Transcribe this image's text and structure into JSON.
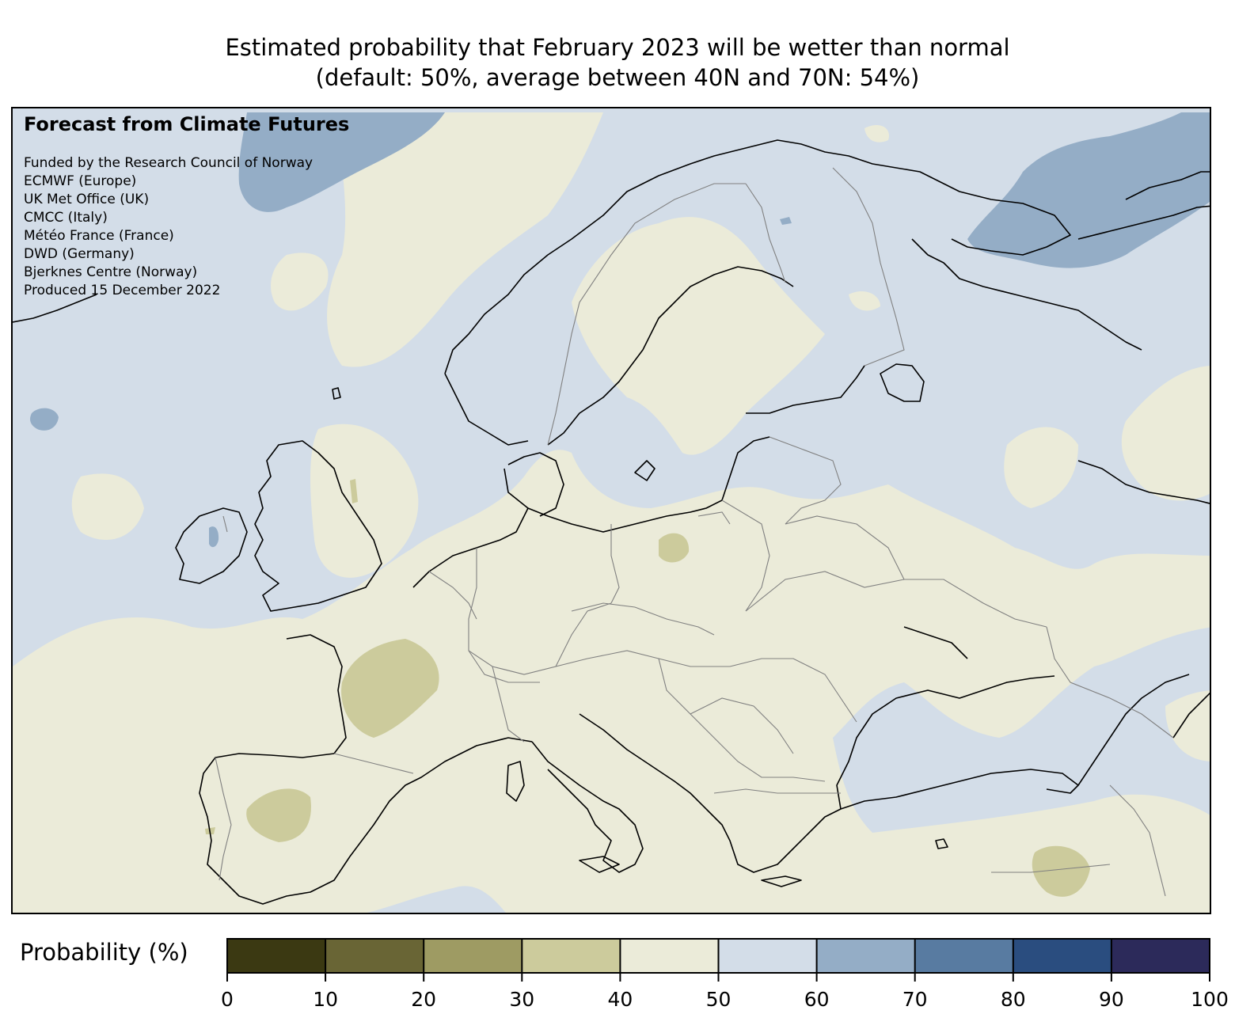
{
  "title_line1": "Estimated probability that February 2023 will be wetter than normal",
  "title_line2": "(default: 50%, average between 40N and 70N: 54%)",
  "overlay": {
    "heading": "Forecast from Climate Futures",
    "credits": [
      "Funded by the Research Council of Norway",
      "ECMWF (Europe)",
      "UK Met Office (UK)",
      "CMCC (Italy)",
      "Météo France (France)",
      "DWD (Germany)",
      "Bjerknes Centre (Norway)",
      "Produced 15 December 2022"
    ]
  },
  "colorbar": {
    "label": "Probability (%)",
    "min": 0,
    "max": 100,
    "bins": [
      {
        "from": 0,
        "to": 10,
        "color": "#3b3912"
      },
      {
        "from": 10,
        "to": 20,
        "color": "#696535"
      },
      {
        "from": 20,
        "to": 30,
        "color": "#9e9b63"
      },
      {
        "from": 30,
        "to": 40,
        "color": "#cccb9c"
      },
      {
        "from": 40,
        "to": 50,
        "color": "#ebebd9"
      },
      {
        "from": 50,
        "to": 60,
        "color": "#d3dde8"
      },
      {
        "from": 60,
        "to": 70,
        "color": "#94adc6"
      },
      {
        "from": 70,
        "to": 80,
        "color": "#587ba1"
      },
      {
        "from": 80,
        "to": 90,
        "color": "#2a4d7f"
      },
      {
        "from": 90,
        "to": 100,
        "color": "#2c2a5a"
      }
    ],
    "ticks": [
      "0",
      "10",
      "20",
      "30",
      "40",
      "50",
      "60",
      "70",
      "80",
      "90",
      "100"
    ]
  }
}
